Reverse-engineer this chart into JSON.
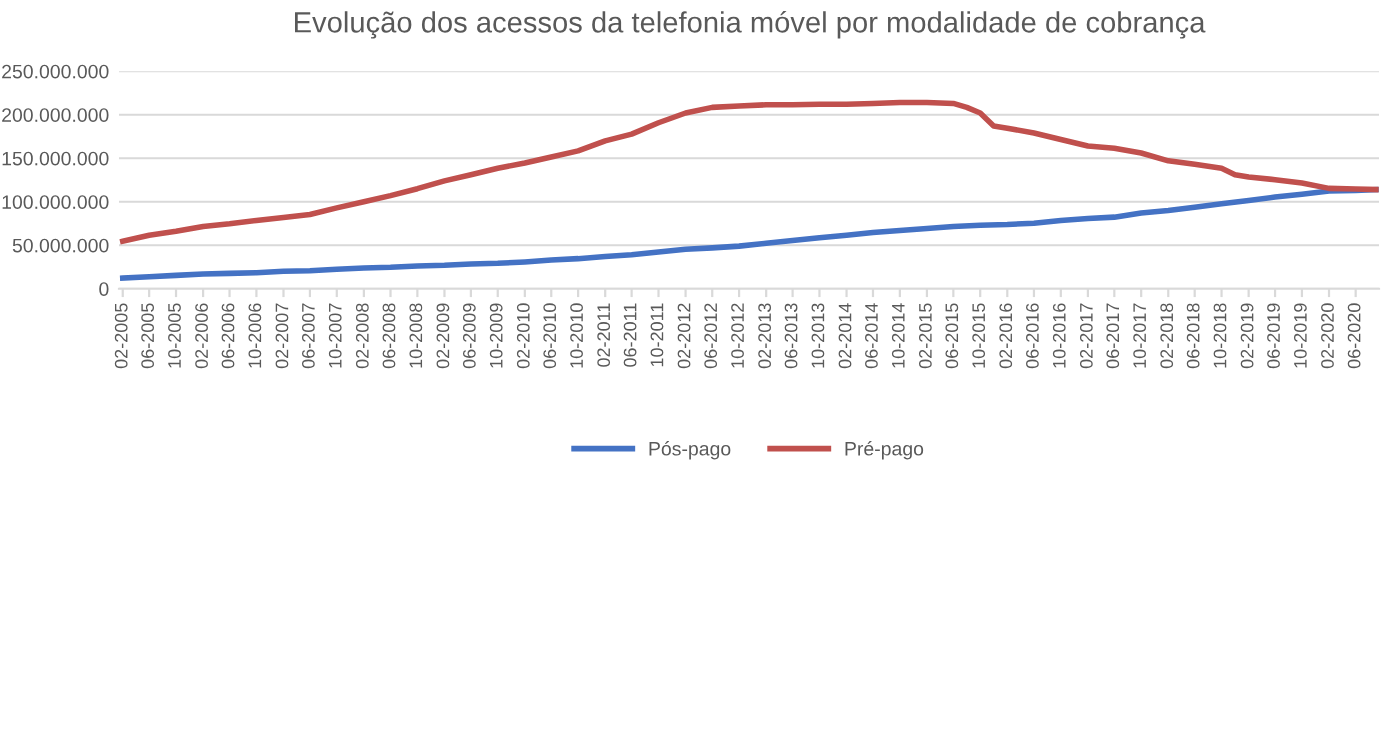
{
  "chart_data": {
    "type": "line",
    "title": "Evolução dos acessos da telefonia móvel por modalidade de cobrança",
    "xlim": [
      "2005-01-15",
      "2020-09-15"
    ],
    "xticks": [
      {
        "value": "2005-02",
        "label": "02-2005"
      },
      {
        "value": "2005-06",
        "label": "06-2005"
      },
      {
        "value": "2005-10",
        "label": "10-2005"
      },
      {
        "value": "2006-02",
        "label": "02-2006"
      },
      {
        "value": "2006-06",
        "label": "06-2006"
      },
      {
        "value": "2006-10",
        "label": "10-2006"
      },
      {
        "value": "2007-02",
        "label": "02-2007"
      },
      {
        "value": "2007-06",
        "label": "06-2007"
      },
      {
        "value": "2007-10",
        "label": "10-2007"
      },
      {
        "value": "2008-02",
        "label": "02-2008"
      },
      {
        "value": "2008-06",
        "label": "06-2008"
      },
      {
        "value": "2008-10",
        "label": "10-2008"
      },
      {
        "value": "2009-02",
        "label": "02-2009"
      },
      {
        "value": "2009-06",
        "label": "06-2009"
      },
      {
        "value": "2009-10",
        "label": "10-2009"
      },
      {
        "value": "2010-02",
        "label": "02-2010"
      },
      {
        "value": "2010-06",
        "label": "06-2010"
      },
      {
        "value": "2010-10",
        "label": "10-2010"
      },
      {
        "value": "2011-02",
        "label": "02-2011"
      },
      {
        "value": "2011-06",
        "label": "06-2011"
      },
      {
        "value": "2011-10",
        "label": "10-2011"
      },
      {
        "value": "2012-02",
        "label": "02-2012"
      },
      {
        "value": "2012-06",
        "label": "06-2012"
      },
      {
        "value": "2012-10",
        "label": "10-2012"
      },
      {
        "value": "2013-02",
        "label": "02-2013"
      },
      {
        "value": "2013-06",
        "label": "06-2013"
      },
      {
        "value": "2013-10",
        "label": "10-2013"
      },
      {
        "value": "2014-02",
        "label": "02-2014"
      },
      {
        "value": "2014-06",
        "label": "06-2014"
      },
      {
        "value": "2014-10",
        "label": "10-2014"
      },
      {
        "value": "2015-02",
        "label": "02-2015"
      },
      {
        "value": "2015-06",
        "label": "06-2015"
      },
      {
        "value": "2015-10",
        "label": "10-2015"
      },
      {
        "value": "2016-02",
        "label": "02-2016"
      },
      {
        "value": "2016-06",
        "label": "06-2016"
      },
      {
        "value": "2016-10",
        "label": "10-2016"
      },
      {
        "value": "2017-02",
        "label": "02-2017"
      },
      {
        "value": "2017-06",
        "label": "06-2017"
      },
      {
        "value": "2017-10",
        "label": "10-2017"
      },
      {
        "value": "2018-02",
        "label": "02-2018"
      },
      {
        "value": "2018-06",
        "label": "06-2018"
      },
      {
        "value": "2018-10",
        "label": "10-2018"
      },
      {
        "value": "2019-02",
        "label": "02-2019"
      },
      {
        "value": "2019-06",
        "label": "06-2019"
      },
      {
        "value": "2019-10",
        "label": "10-2019"
      },
      {
        "value": "2020-02",
        "label": "02-2020"
      },
      {
        "value": "2020-06",
        "label": "06-2020"
      }
    ],
    "ylim": [
      0,
      250000000
    ],
    "yticks": [
      0,
      {
        "value": 50000000,
        "label": "50.000.000"
      },
      {
        "value": 100000000,
        "label": "100.000.000"
      },
      {
        "value": 150000000,
        "label": "150.000.000"
      },
      {
        "value": 200000000,
        "label": "200.000.000"
      },
      {
        "value": 250000000,
        "label": "250.000.000"
      }
    ],
    "grid": "y",
    "legend": "bottom",
    "marker": "none",
    "line_style": "solid",
    "series": [
      {
        "name": "Pós-pago",
        "color": "#4472c4",
        "x": [
          "2005-02",
          "2005-06",
          "2005-10",
          "2006-02",
          "2006-06",
          "2006-10",
          "2007-02",
          "2007-06",
          "2007-10",
          "2008-02",
          "2008-06",
          "2008-10",
          "2009-02",
          "2009-06",
          "2009-10",
          "2010-02",
          "2010-06",
          "2010-10",
          "2011-02",
          "2011-06",
          "2011-10",
          "2012-02",
          "2012-06",
          "2012-10",
          "2013-02",
          "2013-06",
          "2013-10",
          "2014-02",
          "2014-06",
          "2014-10",
          "2015-02",
          "2015-06",
          "2015-10",
          "2016-02",
          "2016-06",
          "2016-10",
          "2017-02",
          "2017-06",
          "2017-10",
          "2018-02",
          "2018-06",
          "2018-10",
          "2019-02",
          "2019-06",
          "2019-10",
          "2020-02",
          "2020-06",
          "2020-09"
        ],
        "values": [
          12300000,
          13800000,
          15400000,
          17000000,
          17700000,
          18500000,
          20000000,
          20800000,
          22300000,
          23800000,
          24600000,
          26200000,
          27000000,
          28500000,
          29200000,
          30800000,
          33000000,
          34600000,
          37000000,
          39200000,
          42300000,
          45400000,
          47000000,
          49000000,
          52300000,
          55400000,
          58500000,
          61500000,
          64600000,
          67000000,
          69200000,
          71500000,
          73000000,
          73800000,
          75400000,
          78500000,
          80800000,
          82300000,
          87000000,
          90000000,
          93800000,
          97700000,
          101500000,
          105400000,
          108500000,
          112300000,
          113000000,
          114000000
        ]
      },
      {
        "name": "Pré-pago",
        "color": "#c0504d",
        "x": [
          "2005-02",
          "2005-06",
          "2005-10",
          "2006-02",
          "2006-06",
          "2006-10",
          "2007-02",
          "2007-06",
          "2007-10",
          "2008-02",
          "2008-06",
          "2008-10",
          "2009-02",
          "2009-06",
          "2009-10",
          "2010-02",
          "2010-06",
          "2010-10",
          "2011-02",
          "2011-06",
          "2011-10",
          "2012-02",
          "2012-06",
          "2012-10",
          "2013-02",
          "2013-06",
          "2013-10",
          "2014-02",
          "2014-06",
          "2014-10",
          "2015-02",
          "2015-06",
          "2015-08",
          "2015-10",
          "2015-12",
          "2016-02",
          "2016-06",
          "2016-10",
          "2017-02",
          "2017-06",
          "2017-10",
          "2018-02",
          "2018-06",
          "2018-10",
          "2018-12",
          "2019-02",
          "2019-06",
          "2019-10",
          "2020-02",
          "2020-06",
          "2020-09"
        ],
        "values": [
          54600000,
          61500000,
          66000000,
          71500000,
          74600000,
          78500000,
          82000000,
          85400000,
          93000000,
          100000000,
          107000000,
          115000000,
          124000000,
          131000000,
          138500000,
          144600000,
          151500000,
          158500000,
          170000000,
          177700000,
          190800000,
          202000000,
          208500000,
          210000000,
          211500000,
          211500000,
          212000000,
          212000000,
          213000000,
          214000000,
          214000000,
          213000000,
          208500000,
          202000000,
          187000000,
          184600000,
          179000000,
          171500000,
          164000000,
          161500000,
          156000000,
          147000000,
          143000000,
          138500000,
          131000000,
          128500000,
          125400000,
          121500000,
          115400000,
          114600000,
          114000000
        ]
      }
    ]
  }
}
